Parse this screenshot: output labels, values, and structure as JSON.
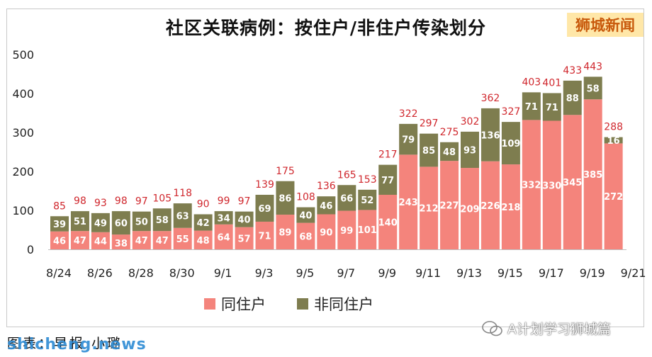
{
  "header": {
    "title": "社区关联病例：按住户/非住户传染划分",
    "badge": "狮城新闻"
  },
  "footer": {
    "caption": "图表：早报 小璐",
    "watermark": "shicheng.news",
    "wechat_account": "A计划学习狮城篇"
  },
  "colors": {
    "household": "#f4847c",
    "non_household": "#7e7d4f",
    "total_label": "#d0282e",
    "value_label": "#ffffff"
  },
  "chart_data": {
    "type": "bar",
    "stacked": true,
    "title": "社区关联病例：按住户/非住户传染划分",
    "categories": [
      "8/24",
      "8/25",
      "8/26",
      "8/27",
      "8/28",
      "8/29",
      "8/30",
      "8/31",
      "9/1",
      "9/2",
      "9/3",
      "9/4",
      "9/5",
      "9/6",
      "9/7",
      "9/8",
      "9/9",
      "9/10",
      "9/11",
      "9/12",
      "9/13",
      "9/14",
      "9/15",
      "9/16",
      "9/17",
      "9/18",
      "9/19",
      "9/20"
    ],
    "x_tick_labels": [
      "8/24",
      "8/26",
      "8/28",
      "8/30",
      "9/1",
      "9/3",
      "9/5",
      "9/7",
      "9/9",
      "9/11",
      "9/13",
      "9/15",
      "9/17",
      "9/19",
      "9/21"
    ],
    "series": [
      {
        "name": "同住户",
        "color": "#f4847c",
        "values": [
          46,
          47,
          44,
          38,
          47,
          47,
          55,
          48,
          64,
          57,
          71,
          89,
          68,
          90,
          99,
          101,
          140,
          243,
          212,
          227,
          209,
          226,
          218,
          332,
          330,
          345,
          385,
          272
        ]
      },
      {
        "name": "非同住户",
        "color": "#7e7d4f",
        "values": [
          39,
          51,
          49,
          60,
          50,
          58,
          63,
          42,
          34,
          40,
          69,
          86,
          40,
          46,
          66,
          52,
          77,
          79,
          85,
          48,
          93,
          136,
          109,
          71,
          71,
          88,
          58,
          16
        ]
      }
    ],
    "totals": [
      85,
      98,
      93,
      98,
      97,
      105,
      118,
      90,
      99,
      97,
      139,
      175,
      108,
      136,
      165,
      153,
      217,
      322,
      297,
      275,
      302,
      362,
      327,
      403,
      401,
      433,
      443,
      288
    ],
    "y_ticks": [
      0,
      100,
      200,
      300,
      400,
      500
    ],
    "ylim": [
      0,
      500
    ],
    "grid": false,
    "legend_position": "bottom"
  }
}
